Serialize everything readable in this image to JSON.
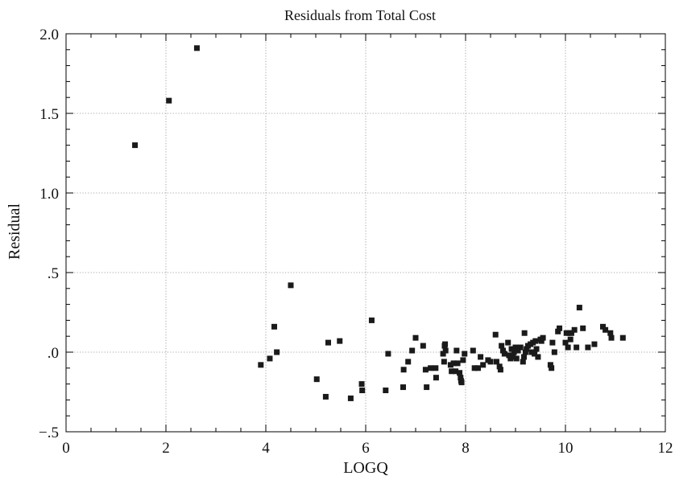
{
  "chart_data": {
    "type": "scatter",
    "title": "Residuals from Total Cost",
    "xlabel": "LOGQ",
    "ylabel": "Residual",
    "xlim": [
      0,
      12
    ],
    "ylim": [
      -0.5,
      2.0
    ],
    "grid": true,
    "x_ticks": [
      0,
      2,
      4,
      6,
      8,
      10,
      12
    ],
    "x_tick_labels": [
      "0",
      "2",
      "4",
      "6",
      "8",
      "10",
      "12"
    ],
    "y_ticks": [
      -0.5,
      0.0,
      0.5,
      1.0,
      1.5,
      2.0
    ],
    "y_tick_labels": [
      "−.5",
      ".0",
      ".5",
      "1.0",
      "1.5",
      "2.0"
    ],
    "series": [
      {
        "color": "#1a1a1a",
        "points": [
          [
            1.38,
            1.3
          ],
          [
            2.06,
            1.58
          ],
          [
            2.62,
            1.91
          ],
          [
            3.9,
            -0.08
          ],
          [
            4.08,
            -0.04
          ],
          [
            4.17,
            0.16
          ],
          [
            4.22,
            0.0
          ],
          [
            4.5,
            0.42
          ],
          [
            5.02,
            -0.17
          ],
          [
            5.2,
            -0.28
          ],
          [
            5.25,
            0.06
          ],
          [
            5.48,
            0.07
          ],
          [
            5.7,
            -0.29
          ],
          [
            5.92,
            -0.2
          ],
          [
            5.93,
            -0.24
          ],
          [
            6.12,
            0.2
          ],
          [
            6.4,
            -0.24
          ],
          [
            6.45,
            -0.01
          ],
          [
            6.75,
            -0.22
          ],
          [
            6.76,
            -0.11
          ],
          [
            6.85,
            -0.06
          ],
          [
            6.93,
            0.01
          ],
          [
            7.0,
            0.09
          ],
          [
            7.15,
            0.04
          ],
          [
            7.2,
            -0.11
          ],
          [
            7.22,
            -0.22
          ],
          [
            7.3,
            -0.1
          ],
          [
            7.4,
            -0.1
          ],
          [
            7.41,
            -0.16
          ],
          [
            7.55,
            -0.01
          ],
          [
            7.57,
            -0.06
          ],
          [
            7.58,
            0.04
          ],
          [
            7.59,
            0.05
          ],
          [
            7.6,
            0.01
          ],
          [
            7.7,
            -0.08
          ],
          [
            7.72,
            -0.12
          ],
          [
            7.76,
            -0.07
          ],
          [
            7.8,
            -0.12
          ],
          [
            7.82,
            0.01
          ],
          [
            7.84,
            -0.07
          ],
          [
            7.88,
            -0.13
          ],
          [
            7.9,
            -0.16
          ],
          [
            7.91,
            -0.18
          ],
          [
            7.92,
            -0.19
          ],
          [
            7.95,
            -0.05
          ],
          [
            7.98,
            -0.01
          ],
          [
            8.15,
            0.01
          ],
          [
            8.18,
            -0.1
          ],
          [
            8.25,
            -0.1
          ],
          [
            8.3,
            -0.03
          ],
          [
            8.35,
            -0.08
          ],
          [
            8.45,
            -0.05
          ],
          [
            8.5,
            -0.06
          ],
          [
            8.6,
            0.11
          ],
          [
            8.62,
            -0.06
          ],
          [
            8.68,
            -0.09
          ],
          [
            8.7,
            -0.11
          ],
          [
            8.72,
            0.04
          ],
          [
            8.75,
            0.01
          ],
          [
            8.78,
            -0.01
          ],
          [
            8.85,
            0.06
          ],
          [
            8.87,
            -0.02
          ],
          [
            8.9,
            -0.04
          ],
          [
            8.92,
            0.02
          ],
          [
            8.95,
            -0.03
          ],
          [
            8.97,
            0.0
          ],
          [
            9.0,
            0.03
          ],
          [
            9.02,
            -0.04
          ],
          [
            9.05,
            0.01
          ],
          [
            9.1,
            0.03
          ],
          [
            9.15,
            -0.06
          ],
          [
            9.17,
            -0.03
          ],
          [
            9.18,
            0.12
          ],
          [
            9.2,
            0.0
          ],
          [
            9.22,
            0.02
          ],
          [
            9.25,
            0.04
          ],
          [
            9.3,
            0.05
          ],
          [
            9.32,
            0.0
          ],
          [
            9.35,
            0.06
          ],
          [
            9.38,
            -0.01
          ],
          [
            9.4,
            0.07
          ],
          [
            9.42,
            0.02
          ],
          [
            9.45,
            -0.03
          ],
          [
            9.5,
            0.08
          ],
          [
            9.52,
            0.07
          ],
          [
            9.55,
            0.09
          ],
          [
            9.7,
            -0.08
          ],
          [
            9.72,
            -0.1
          ],
          [
            9.74,
            0.06
          ],
          [
            9.78,
            0.0
          ],
          [
            9.85,
            0.13
          ],
          [
            9.88,
            0.15
          ],
          [
            10.0,
            0.06
          ],
          [
            10.02,
            0.12
          ],
          [
            10.05,
            0.03
          ],
          [
            10.08,
            0.12
          ],
          [
            10.1,
            0.08
          ],
          [
            10.12,
            0.12
          ],
          [
            10.18,
            0.14
          ],
          [
            10.22,
            0.03
          ],
          [
            10.28,
            0.28
          ],
          [
            10.35,
            0.15
          ],
          [
            10.45,
            0.03
          ],
          [
            10.58,
            0.05
          ],
          [
            10.75,
            0.16
          ],
          [
            10.8,
            0.14
          ],
          [
            10.9,
            0.12
          ],
          [
            10.92,
            0.09
          ],
          [
            11.15,
            0.09
          ]
        ]
      }
    ]
  }
}
